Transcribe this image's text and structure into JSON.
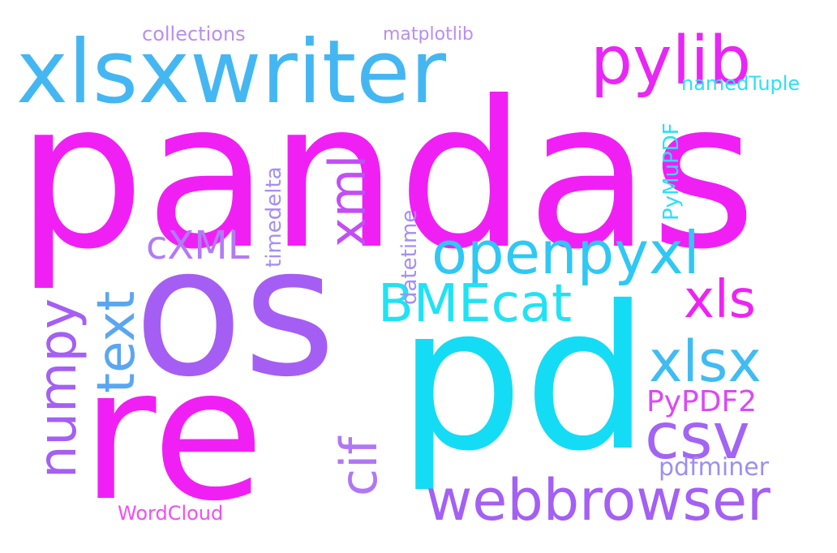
{
  "palette": {
    "magenta": "#f020f5",
    "purple": "#a06af5",
    "cyan": "#1ee0f4",
    "sky": "#44b7f3",
    "violet": "#b27bf5",
    "light_violet": "#c5a0f8"
  },
  "words": [
    {
      "key": "pandas",
      "text": "pandas",
      "color": "#f020f5"
    },
    {
      "key": "os",
      "text": "os",
      "color": "#a55ef4"
    },
    {
      "key": "re",
      "text": "re",
      "color": "#f020f5"
    },
    {
      "key": "pd",
      "text": "pd",
      "color": "#14dcf4"
    },
    {
      "key": "xlsxwriter",
      "text": "xlsxwriter",
      "color": "#44b7f3"
    },
    {
      "key": "pylib",
      "text": "pylib",
      "color": "#e826f5"
    },
    {
      "key": "openpyxl",
      "text": "openpyxl",
      "color": "#2fc8f4"
    },
    {
      "key": "webbrowser",
      "text": "webbrowser",
      "color": "#a45ff4"
    },
    {
      "key": "xlsx",
      "text": "xlsx",
      "color": "#40bcf3"
    },
    {
      "key": "csv",
      "text": "csv",
      "color": "#a264f4"
    },
    {
      "key": "bmecat",
      "text": "BMEcat",
      "color": "#1fe3f5"
    },
    {
      "key": "xls",
      "text": "xls",
      "color": "#ef22f5"
    },
    {
      "key": "numpy",
      "text": "numpy",
      "color": "#a45ff4"
    },
    {
      "key": "text",
      "text": "text",
      "color": "#5aa6f3"
    },
    {
      "key": "cif",
      "text": "cif",
      "color": "#b077f5"
    },
    {
      "key": "xml",
      "text": "xml",
      "color": "#c34ef5"
    },
    {
      "key": "cxml",
      "text": "cXML",
      "color": "#b27bf5"
    },
    {
      "key": "pypdf2",
      "text": "PyPDF2",
      "color": "#d94af5"
    },
    {
      "key": "pdfminer",
      "text": "pdfminer",
      "color": "#9b8ff5"
    },
    {
      "key": "timedelta",
      "text": "timedelta",
      "color": "#a68ef5"
    },
    {
      "key": "datetime",
      "text": "datetime",
      "color": "#a68ef5"
    },
    {
      "key": "pymupdf",
      "text": "PyMuPDF",
      "color": "#2ddff5"
    },
    {
      "key": "namedtuple",
      "text": "namedTuple",
      "color": "#2ddff5"
    },
    {
      "key": "matplotlib",
      "text": "matplotlib",
      "color": "#b98ef5"
    },
    {
      "key": "collections",
      "text": "collections",
      "color": "#b98ef5"
    },
    {
      "key": "wordcloud",
      "text": "WordCloud",
      "color": "#f04ef5"
    }
  ]
}
